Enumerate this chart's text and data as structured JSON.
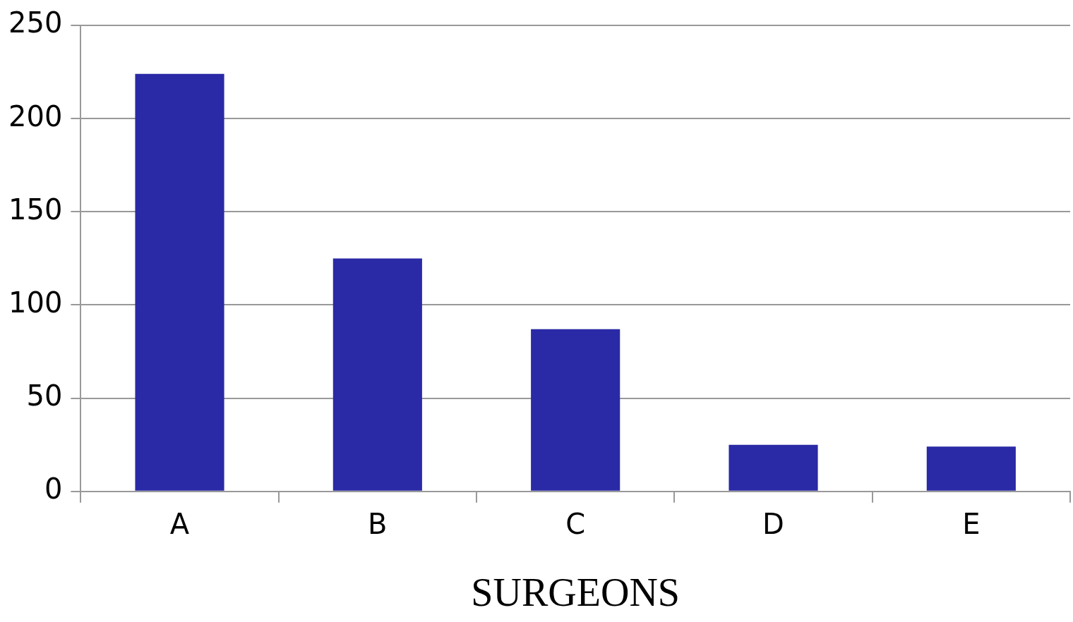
{
  "chart_data": {
    "type": "bar",
    "xlabel": "SURGEONS",
    "categories": [
      "A",
      "B",
      "C",
      "D",
      "E"
    ],
    "values": [
      224,
      125,
      87,
      25,
      24
    ],
    "color": "#2a2aa6",
    "ylim": [
      0,
      250
    ],
    "yticks": [
      0,
      50,
      100,
      150,
      200,
      250
    ],
    "grid": "y"
  }
}
